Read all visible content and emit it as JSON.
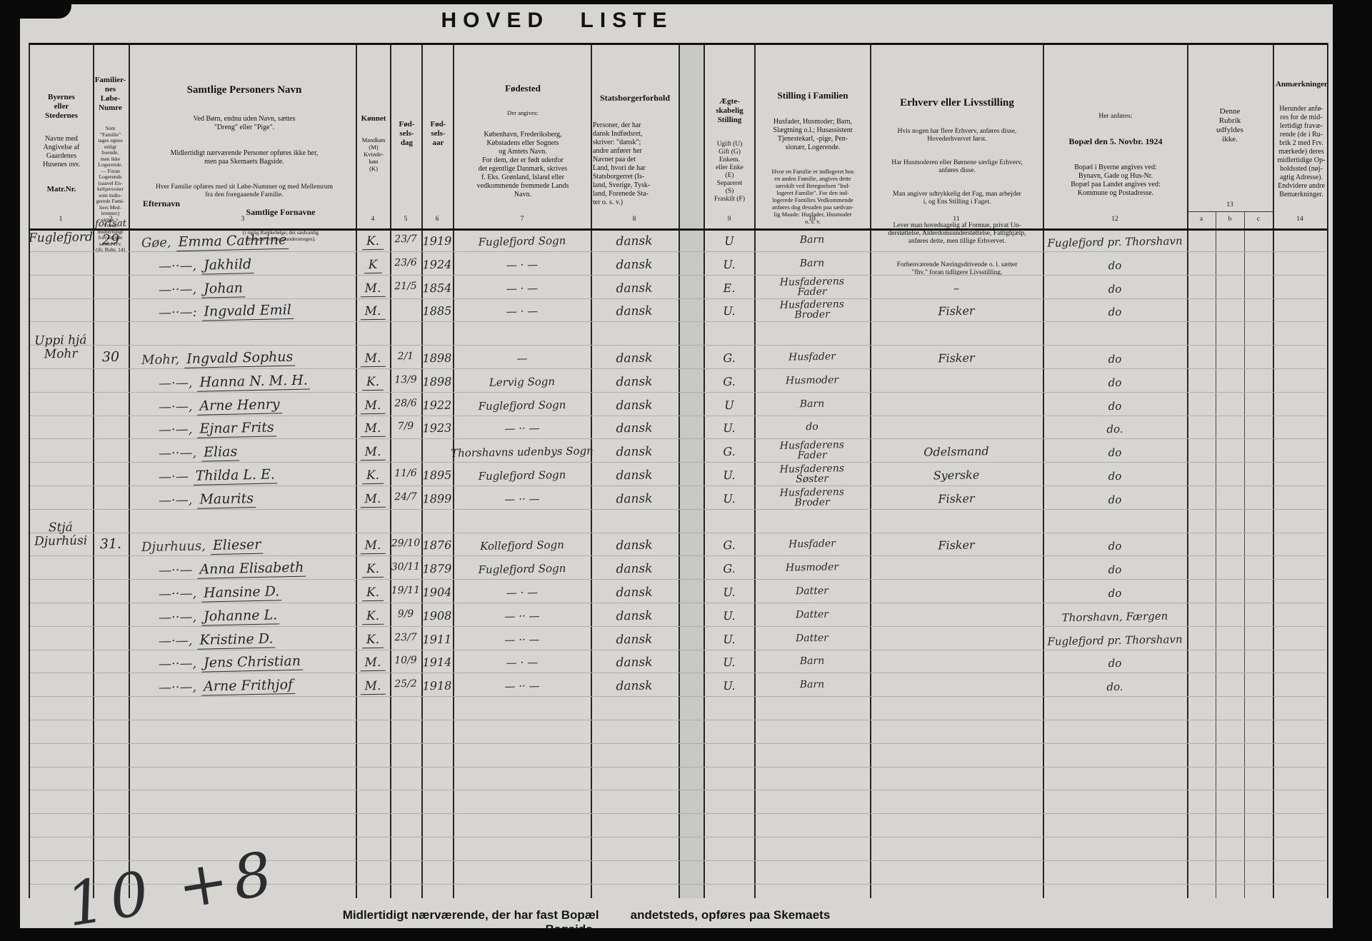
{
  "title": "HOVED  LISTE",
  "columns": {
    "c1": {
      "num": "1",
      "top": "Byernes\neller\nStedernes",
      "mid": "Navne med\nAngivelse af\nGaardenes\nHusenes osv.",
      "bot": "Matr.Nr."
    },
    "c2": {
      "num": "2",
      "title": "Familier-\nnes\nLøbe-\nNumre",
      "note": "Som\n\"Familie\"\ntages egnes\nenligt\nboende,\nmen ikke\nLogerende.\n— Foran\nLogerende\n(saavel En-\nkeltpersoner\nsom indlo-\ngerede Fami-\nliers Med-\nlemmer)\nsættes ×.\nForan\nmidlertidigt\nfraværende\nsættes Frv.\n(jfr. Rubr. 14)"
    },
    "c3": {
      "num": "3",
      "title": "Samtlige Personers Navn",
      "line1": "Ved Børn, endnu uden Navn, sættes\n\"Dreng\" eller \"Pige\".",
      "line2": "Midlertidigt nærværende Personer opføres ikke her,\nmen paa Skemaets Bagside.",
      "line3": "Hver Familie opføres med sit Løbe-Nummer og med Mellemrum\nfra den foregaaende Familie.",
      "sub_left": "Efternavn",
      "sub_right": "Samtlige Fornavne",
      "sub_note": "(i rigtig Rækkefølge; det sædvanlig\nanvendte Fornavn understreges)."
    },
    "c4": {
      "num": "4",
      "title": "Kønnet",
      "note": "Mandkøn\n(M)\nKvinde-\nkøn\n(K)"
    },
    "c5": {
      "num": "5",
      "title": "Fød-\nsels-\ndag"
    },
    "c6": {
      "num": "6",
      "title": "Fød-\nsels-\naar"
    },
    "c7": {
      "num": "7",
      "title": "Fødested",
      "note": "Der angives:",
      "body": "København, Frederiksberg,\nKøbstadens eller Sognets\nog Amtets Navn.\nFor dem, der er født udenfor\ndet egentlige Danmark, skrives\nf. Eks. Grønland, Island eller\nvedkommende fremmede Lands\nNavn."
    },
    "c8": {
      "num": "8",
      "title": "Statsborgerforhold",
      "body": "Personer, der har\ndansk Indfødsret,\nskriver: \"dansk\";\nandre anfører her\nNavnet paa det\nLand, hvori de har\nStatsborgerret (Is-\nland, Sverige, Tysk-\nland, Forenede Sta-\nter o. s. v.)"
    },
    "c9": {
      "num": "9",
      "title": "Ægte-\nskabelig\nStilling",
      "body": "Ugift (U)\nGift (G)\nEnkem.\neller Enke\n(E)\nSepareret\n(S)\nFraskilt (F)"
    },
    "c10": {
      "num": "10",
      "title": "Stilling i Familien",
      "body": "Husfader, Husmoder; Barn,\nSlægtning o.l.; Husassistent\nTjenestekarl, -pige, Pen-\nsionær, Logerende.",
      "note": "Hvor en Familie er indlogeret hos\nen anden Familie, angives dette\nsærskilt ved Betegnelsen \"Ind-\nlogeret Familie\". For den ind-\nlogerede Families Vedkommende\nanføres dog desuden paa sædvan-\nlig Maade: Husfader, Husmoder\no. s. v."
    },
    "c11": {
      "num": "11",
      "title": "Erhverv eller Livsstilling",
      "p1": "Hvis nogen har flere Erhverv, anføres disse,\nHovederhvervet først.",
      "p2": "Har Husmoderen eller Børnene særlige Erhverv,\nanføres disse.",
      "p3": "Man angiver udtrykkelig det Fag, man arbejder\ni, og Ens Stilling i Faget.",
      "p4": "Lever man hovedsagelig af Formue, privat Un-\nderstøttelse, Alderdomsunderstøttelse, Fattighjælp,\nanføres dette, men tillige Erhvervet.",
      "p5": "Forhenværende Næringsdrivende o. l. sætter\n\"fhv.\" foran tidligere Livsstilling."
    },
    "c12": {
      "num": "12",
      "pre": "Her anføres:",
      "title": "Bopæl den 5. Novbr. 1924",
      "body": "Bopæl i Byerne angives ved:\nBynavn, Gade og Hus-Nr.\nBopæl paa Landet angives ved:\nKommune og Postadresse."
    },
    "c13": {
      "num": "13",
      "sub": [
        "a",
        "b",
        "c"
      ],
      "text": "Denne\nRubrik\nudfyldes\nikke."
    },
    "c14": {
      "num": "14",
      "title": "Anmærkninger",
      "body": "Herunder anfø-\nres for de mid-\nlertidigt fravæ-\nrende (de i Ru-\nbrik 2 med Frv.\nmærkede) deres\nmidlertidige Op-\nholdssted (nøj-\nagtig Adresse).\nEndvidere andre\nBemærkninger."
    }
  },
  "families": [
    {
      "place": "Fuglefjord",
      "note": "fortsat",
      "number": "29",
      "rows": [
        {
          "prefix": "Gøe,",
          "name": "Emma Cathrine",
          "sex": "K.",
          "day": "23/7",
          "year": "1919",
          "born": "Fuglefjord Sogn",
          "citizen": "dansk",
          "marital": "U",
          "position": "Barn",
          "occupation": "",
          "residence": "Fuglefjord pr. Thorshavn"
        },
        {
          "prefix": "—··—,",
          "name": "Jakhild",
          "sex": "K",
          "day": "23/6",
          "year": "1924",
          "born": "— · —",
          "citizen": "dansk",
          "marital": "U.",
          "position": "Barn",
          "occupation": "",
          "residence": "do"
        },
        {
          "prefix": "—··—,",
          "name": "Johan",
          "sex": "M.",
          "day": "21/5",
          "year": "1854",
          "born": "— · —",
          "citizen": "dansk",
          "marital": "E.",
          "position": "Husfaderens\nFader",
          "occupation": "–",
          "residence": "do"
        },
        {
          "prefix": "—··—:",
          "name": "Ingvald Emil",
          "sex": "M.",
          "day": "",
          "year": "1885",
          "born": "— · —",
          "citizen": "dansk",
          "marital": "U.",
          "position": "Husfaderens\nBroder",
          "occupation": "Fisker",
          "residence": "do"
        }
      ]
    },
    {
      "place": "Uppi hjá\nMohr",
      "note": "",
      "number": "30",
      "rows": [
        {
          "prefix": "Mohr,",
          "name": "Ingvald Sophus",
          "sex": "M.",
          "day": "2/1",
          "year": "1898",
          "born": "—",
          "citizen": "dansk",
          "marital": "G.",
          "position": "Husfader",
          "occupation": "Fisker",
          "residence": "do"
        },
        {
          "prefix": "—·—,",
          "name": "Hanna N. M. H.",
          "sex": "K.",
          "day": "13/9",
          "year": "1898",
          "born": "Lervig Sogn",
          "citizen": "dansk",
          "marital": "G.",
          "position": "Husmoder",
          "occupation": "",
          "residence": "do"
        },
        {
          "prefix": "—·—,",
          "name": "Arne Henry",
          "sex": "M.",
          "day": "28/6",
          "year": "1922",
          "born": "Fuglefjord Sogn",
          "citizen": "dansk",
          "marital": "U",
          "position": "Barn",
          "occupation": "",
          "residence": "do"
        },
        {
          "prefix": "—·—,",
          "name": "Ejnar Frits",
          "sex": "M.",
          "day": "7/9",
          "year": "1923",
          "born": "— ·· —",
          "citizen": "dansk",
          "marital": "U.",
          "position": "do",
          "occupation": "",
          "residence": "do."
        },
        {
          "prefix": "—··—,",
          "name": "Elias",
          "sex": "M.",
          "day": "",
          "year": "",
          "born": "Thorshavns udenbys Sogn",
          "citizen": "dansk",
          "marital": "G.",
          "position": "Husfaderens\nFader",
          "occupation": "Odelsmand",
          "residence": "do"
        },
        {
          "prefix": "—·—",
          "name": "Thilda L. E.",
          "sex": "K.",
          "day": "11/6",
          "year": "1895",
          "born": "Fuglefjord Sogn",
          "citizen": "dansk",
          "marital": "U.",
          "position": "Husfaderens\nSøster",
          "occupation": "Syerske",
          "residence": "do"
        },
        {
          "prefix": "—·—,",
          "name": "Maurits",
          "sex": "M.",
          "day": "24/7",
          "year": "1899",
          "born": "— ·· —",
          "citizen": "dansk",
          "marital": "U.",
          "position": "Husfaderens\nBroder",
          "occupation": "Fisker",
          "residence": "do"
        }
      ]
    },
    {
      "place": "Stjá\nDjurhúsi",
      "note": "",
      "number": "31.",
      "rows": [
        {
          "prefix": "Djurhuus,",
          "name": "Elieser",
          "sex": "M.",
          "day": "29/10",
          "year": "1876",
          "born": "Kollefjord Sogn",
          "citizen": "dansk",
          "marital": "G.",
          "position": "Husfader",
          "occupation": "Fisker",
          "residence": "do"
        },
        {
          "prefix": "—··—",
          "name": "Anna Elisabeth",
          "sex": "K.",
          "day": "30/11",
          "year": "1879",
          "born": "Fuglefjord Sogn",
          "citizen": "dansk",
          "marital": "G.",
          "position": "Husmoder",
          "occupation": "",
          "residence": "do"
        },
        {
          "prefix": "—··—,",
          "name": "Hansine D.",
          "sex": "K.",
          "day": "19/11",
          "year": "1904",
          "born": "— · —",
          "citizen": "dansk",
          "marital": "U.",
          "position": "Datter",
          "occupation": "",
          "residence": "do"
        },
        {
          "prefix": "—··—,",
          "name": "Johanne L.",
          "sex": "K.",
          "day": "9/9",
          "year": "1908",
          "born": "— ·· —",
          "citizen": "dansk",
          "marital": "U.",
          "position": "Datter",
          "occupation": "",
          "residence": "Thorshavn, Færgen"
        },
        {
          "prefix": "—·—,",
          "name": "Kristine D.",
          "sex": "K.",
          "day": "23/7",
          "year": "1911",
          "born": "— ·· —",
          "citizen": "dansk",
          "marital": "U.",
          "position": "Datter",
          "occupation": "",
          "residence": "Fuglefjord pr. Thorshavn"
        },
        {
          "prefix": "—··—,",
          "name": "Jens Christian",
          "sex": "M.",
          "day": "10/9",
          "year": "1914",
          "born": "— · —",
          "citizen": "dansk",
          "marital": "U.",
          "position": "Barn",
          "occupation": "",
          "residence": "do"
        },
        {
          "prefix": "—··—,",
          "name": "Arne Frithjof",
          "sex": "M.",
          "day": "25/2",
          "year": "1918",
          "born": "— ·· —",
          "citizen": "dansk",
          "marital": "U.",
          "position": "Barn",
          "occupation": "",
          "residence": "do."
        }
      ]
    }
  ],
  "footer": {
    "left": "Midlertidigt nærværende, der har fast Bopæl",
    "right": "andetsteds, opføres paa Skemaets Bagside."
  },
  "scrawl": "10 +8"
}
